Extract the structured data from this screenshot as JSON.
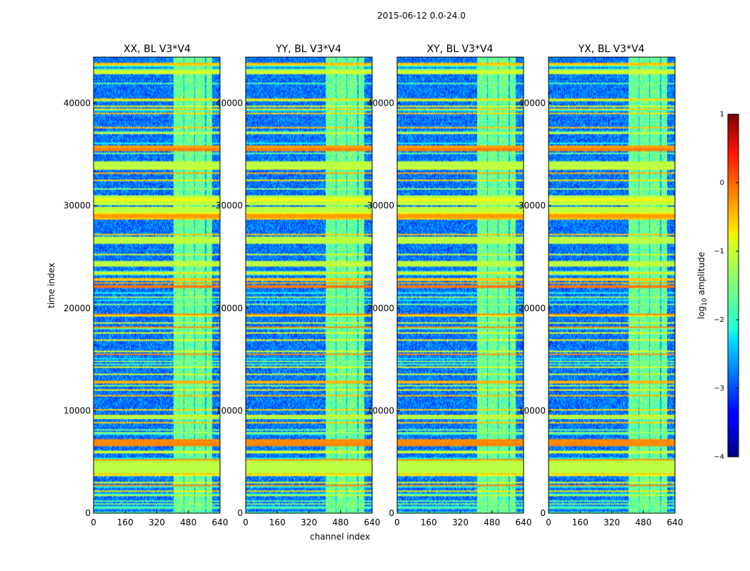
{
  "chart_data": {
    "type": "heatmap",
    "title": "2015-06-12 0.0-24.0",
    "xlabel": "channel index",
    "ylabel": "time index",
    "xlim": [
      0,
      640
    ],
    "ylim": [
      0,
      44500
    ],
    "x_ticks": [
      "0",
      "160",
      "320",
      "480",
      "640"
    ],
    "y_ticks": [
      "0",
      "10000",
      "20000",
      "30000",
      "40000"
    ],
    "panels": [
      {
        "title": "XX, BL V3*V4"
      },
      {
        "title": "YY, BL V3*V4"
      },
      {
        "title": "XY, BL V3*V4"
      },
      {
        "title": "YX, BL V3*V4"
      }
    ],
    "colorbar": {
      "label": "log",
      "label_sub": "10",
      "label_rest": " amplitude",
      "range": [
        -4,
        1
      ],
      "ticks": [
        "1",
        "0",
        "−1",
        "−2",
        "−3",
        "−4"
      ],
      "colormap": "jet"
    },
    "background_level": -2.8,
    "rfi_channel_band": [
      405,
      600
    ],
    "rfi_bright_subbands": [
      [
        405,
        455
      ],
      [
        460,
        510
      ],
      [
        515,
        565
      ],
      [
        570,
        600
      ]
    ],
    "band_level": -1.6,
    "broadband_rows": [
      {
        "t0": 3600,
        "t1": 5200,
        "level": -1.2
      },
      {
        "t0": 6600,
        "t1": 7200,
        "level": -0.3
      },
      {
        "t0": 12600,
        "t1": 12900,
        "level": -0.5
      },
      {
        "t0": 22000,
        "t1": 22300,
        "level": -0.2
      },
      {
        "t0": 22700,
        "t1": 23000,
        "level": -0.6
      },
      {
        "t0": 24200,
        "t1": 24600,
        "level": -1.2
      },
      {
        "t0": 26300,
        "t1": 27000,
        "level": -1.2
      },
      {
        "t0": 28800,
        "t1": 29200,
        "level": -0.4
      },
      {
        "t0": 29400,
        "t1": 29800,
        "level": -1.2
      },
      {
        "t0": 30000,
        "t1": 31000,
        "level": -1.2
      },
      {
        "t0": 33600,
        "t1": 34400,
        "level": -1.2
      },
      {
        "t0": 35600,
        "t1": 35900,
        "level": -0.4
      },
      {
        "t0": 42800,
        "t1": 43200,
        "level": -1.1
      }
    ]
  }
}
